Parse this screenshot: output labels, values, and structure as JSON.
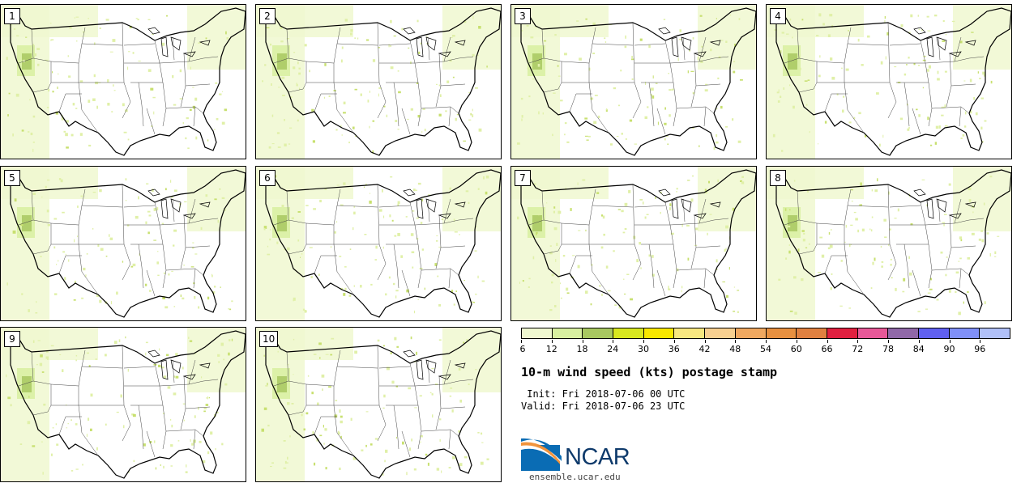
{
  "panels": [
    {
      "label": "1"
    },
    {
      "label": "2"
    },
    {
      "label": "3"
    },
    {
      "label": "4"
    },
    {
      "label": "5"
    },
    {
      "label": "6"
    },
    {
      "label": "7"
    },
    {
      "label": "8"
    },
    {
      "label": "9"
    },
    {
      "label": "10"
    }
  ],
  "colorbar": {
    "ticks": [
      "6",
      "12",
      "18",
      "24",
      "30",
      "36",
      "42",
      "48",
      "54",
      "60",
      "66",
      "72",
      "78",
      "84",
      "90",
      "96"
    ],
    "colors": [
      "#f0f8d0",
      "#d8f0a0",
      "#a8c860",
      "#d8e820",
      "#f8e800",
      "#f8e880",
      "#f8d090",
      "#f0a860",
      "#e89040",
      "#e08040",
      "#e02040",
      "#e85898",
      "#9068a8",
      "#6060f0",
      "#8090f8",
      "#b0c0f8"
    ]
  },
  "title": "10-m wind speed (kts) postage stamp",
  "init_line": " Init: Fri 2018-07-06 00 UTC",
  "valid_line": "Valid: Fri 2018-07-06 23 UTC",
  "logo_text": "NCAR",
  "url": "ensemble.ucar.edu"
}
